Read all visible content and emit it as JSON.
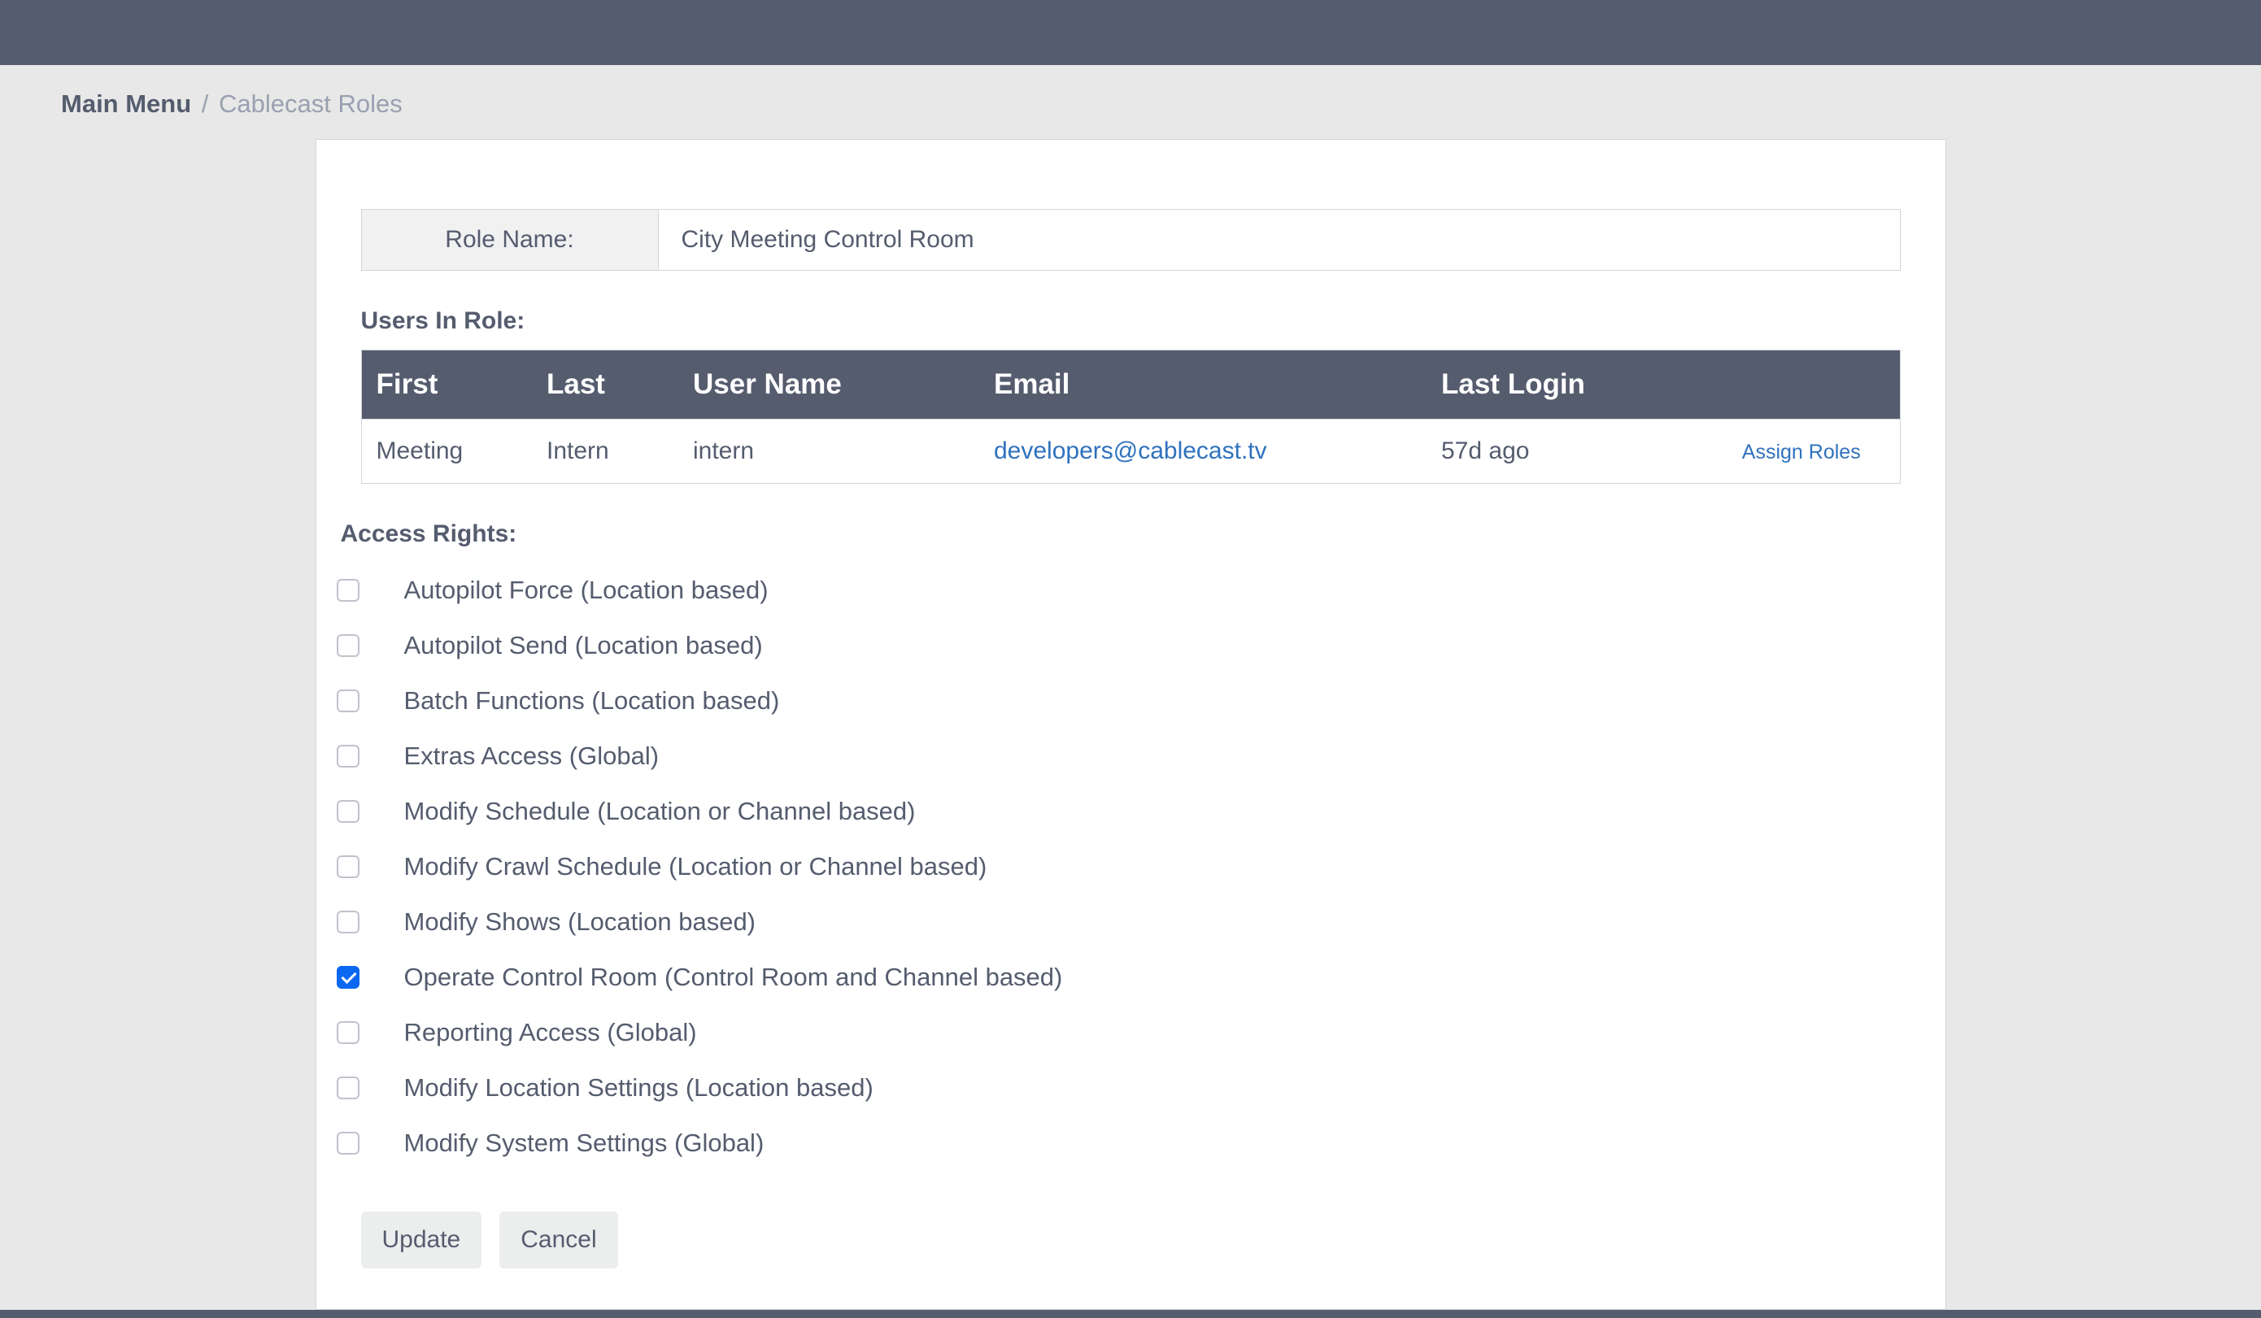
{
  "breadcrumb": {
    "root": "Main Menu",
    "separator": "/",
    "current": "Cablecast Roles"
  },
  "roleName": {
    "label": "Role Name:",
    "value": "City Meeting Control Room"
  },
  "usersSection": {
    "title": "Users In Role:",
    "columns": {
      "first": "First",
      "last": "Last",
      "username": "User Name",
      "email": "Email",
      "lastLogin": "Last Login"
    },
    "rows": [
      {
        "first": "Meeting",
        "last": "Intern",
        "username": "intern",
        "email": "developers@cablecast.tv",
        "lastLogin": "57d ago",
        "actionLabel": "Assign Roles"
      }
    ]
  },
  "accessRights": {
    "title": "Access Rights:",
    "items": [
      {
        "label": "Autopilot Force (Location based)",
        "checked": false
      },
      {
        "label": "Autopilot Send (Location based)",
        "checked": false
      },
      {
        "label": "Batch Functions (Location based)",
        "checked": false
      },
      {
        "label": "Extras Access (Global)",
        "checked": false
      },
      {
        "label": "Modify Schedule (Location or Channel based)",
        "checked": false
      },
      {
        "label": "Modify Crawl Schedule (Location or Channel based)",
        "checked": false
      },
      {
        "label": "Modify Shows (Location based)",
        "checked": false
      },
      {
        "label": "Operate Control Room (Control Room and Channel based)",
        "checked": true
      },
      {
        "label": "Reporting Access (Global)",
        "checked": false
      },
      {
        "label": "Modify Location Settings (Location based)",
        "checked": false
      },
      {
        "label": "Modify System Settings (Global)",
        "checked": false
      }
    ]
  },
  "buttons": {
    "update": "Update",
    "cancel": "Cancel"
  },
  "colors": {
    "headerBg": "#555c6e",
    "pageBg": "#e8e8e8",
    "cardBg": "#ffffff",
    "border": "#d3d5db",
    "textPrimary": "#555c6e",
    "textMuted": "#9aa0b0",
    "link": "#2f72bd",
    "checkboxChecked": "#0a67f2",
    "buttonBg": "#eceded",
    "labelBg": "#f1f1f2"
  }
}
